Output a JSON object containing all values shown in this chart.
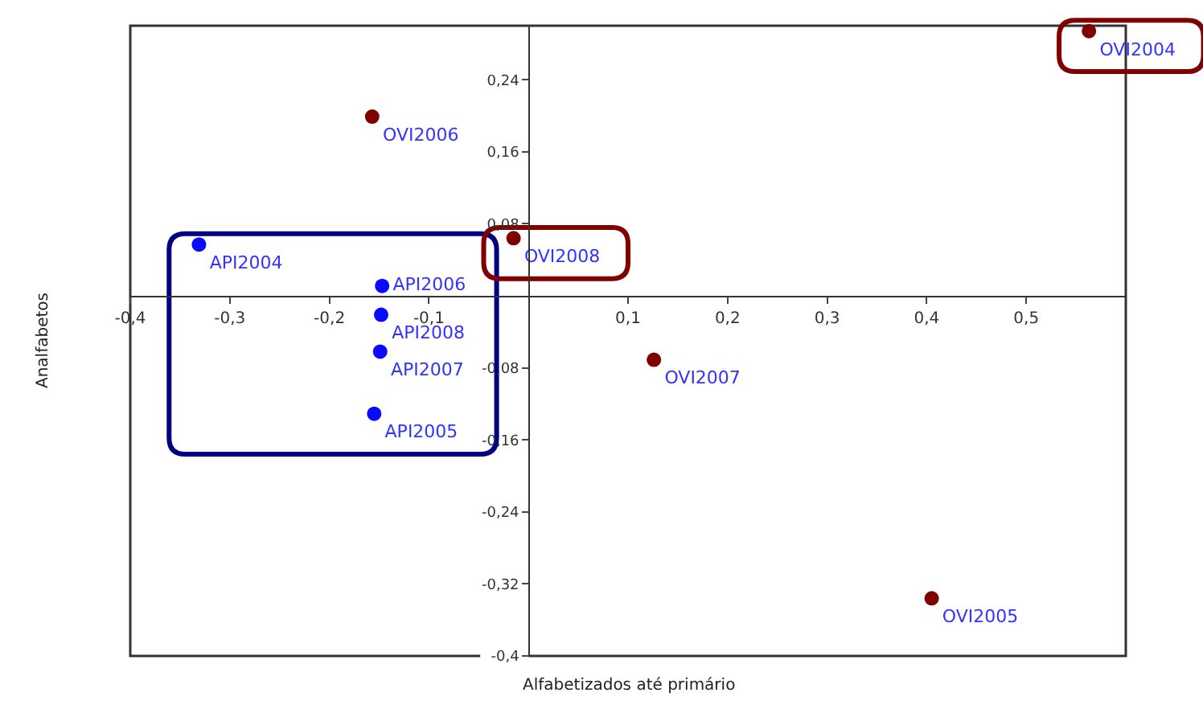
{
  "chart_data": {
    "type": "scatter",
    "xlabel": "Alfabetizados até primário",
    "ylabel": "Analfabetos",
    "xlim": [
      -0.4,
      0.6
    ],
    "ylim": [
      -0.4,
      0.3
    ],
    "xticks": [
      {
        "value": -0.4,
        "label": "-0,4"
      },
      {
        "value": -0.3,
        "label": "-0,3"
      },
      {
        "value": -0.2,
        "label": "-0,2"
      },
      {
        "value": -0.1,
        "label": "-0,1"
      },
      {
        "value": 0.1,
        "label": "0,1"
      },
      {
        "value": 0.2,
        "label": "0,2"
      },
      {
        "value": 0.3,
        "label": "0,3"
      },
      {
        "value": 0.4,
        "label": "0,4"
      },
      {
        "value": 0.5,
        "label": "0,5"
      }
    ],
    "yticks": [
      {
        "value": 0.24,
        "label": "0,24"
      },
      {
        "value": 0.16,
        "label": "0,16"
      },
      {
        "value": 0.08,
        "label": "0,08"
      },
      {
        "value": -0.08,
        "label": "-0,08"
      },
      {
        "value": -0.16,
        "label": "-0,16"
      },
      {
        "value": -0.24,
        "label": "-0,24"
      },
      {
        "value": -0.32,
        "label": "-0,32"
      },
      {
        "value": -0.4,
        "label": "-0,4"
      }
    ],
    "grid": false,
    "marker": "circle",
    "series": [
      {
        "color": "#800000",
        "x": [
          0.563,
          0.405,
          -0.157,
          0.126,
          -0.015
        ],
        "values": [
          0.294,
          -0.336,
          0.199,
          -0.071,
          0.064
        ],
        "value_labels": [
          "OVI2004",
          "OVI2005",
          "OVI2006",
          "OVI2007",
          "OVI2008"
        ]
      },
      {
        "color": "#0a0aff",
        "x": [
          -0.331,
          -0.155,
          -0.147,
          -0.149,
          -0.148
        ],
        "values": [
          0.057,
          -0.131,
          0.011,
          -0.062,
          -0.021
        ],
        "value_labels": [
          "API2004",
          "API2005",
          "API2006",
          "API2007",
          "API2008"
        ]
      }
    ]
  }
}
